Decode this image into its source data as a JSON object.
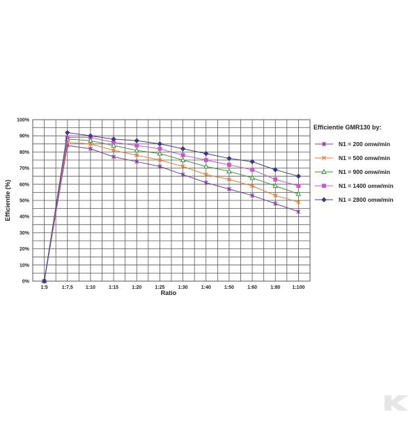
{
  "chart_data": {
    "type": "line",
    "title": "",
    "xlabel": "Ratio",
    "ylabel": "Efficientie (%)",
    "categories": [
      "1:5",
      "1:7,5",
      "1:10",
      "1:15",
      "1:20",
      "1:25",
      "1:30",
      "1:40",
      "1:50",
      "1:60",
      "1:80",
      "1:100"
    ],
    "yticks": [
      "0%",
      "10%",
      "20%",
      "30%",
      "40%",
      "50%",
      "60%",
      "70%",
      "80%",
      "90%",
      "100%"
    ],
    "ylim": [
      0,
      100
    ],
    "grid": true,
    "legend": {
      "title": "Efficientie GMR130 by:",
      "placement": "right"
    },
    "series": [
      {
        "name": "N1 = 200 omw/min",
        "color": "#7a3a9a",
        "marker": "asterisk",
        "values": [
          0,
          84,
          82,
          77,
          74,
          71,
          66,
          61,
          57,
          53,
          48,
          43
        ]
      },
      {
        "name": "N1 = 500 omw/min",
        "color": "#f07a2a",
        "marker": "x",
        "values": [
          0,
          86,
          85,
          81,
          78,
          75,
          71,
          66,
          63,
          59,
          53,
          49
        ]
      },
      {
        "name": "N1 = 900 omw/min",
        "color": "#3a9a3a",
        "marker": "triangle",
        "values": [
          0,
          88,
          87,
          84,
          81,
          79,
          75,
          71,
          68,
          64,
          59,
          54
        ]
      },
      {
        "name": "N1 = 1400 omw/min",
        "color": "#cc55cc",
        "marker": "square",
        "values": [
          0,
          89,
          89,
          86,
          84,
          82,
          78,
          75,
          72,
          69,
          63,
          59
        ]
      },
      {
        "name": "N1 = 2800 omw/min",
        "color": "#3a3a8a",
        "marker": "diamond",
        "values": [
          0,
          92,
          90,
          88,
          87,
          85,
          82,
          79,
          76,
          74,
          69,
          65
        ]
      }
    ]
  },
  "watermark": {
    "icon": "brand-logo-icon",
    "color": "#e6e6e6"
  }
}
